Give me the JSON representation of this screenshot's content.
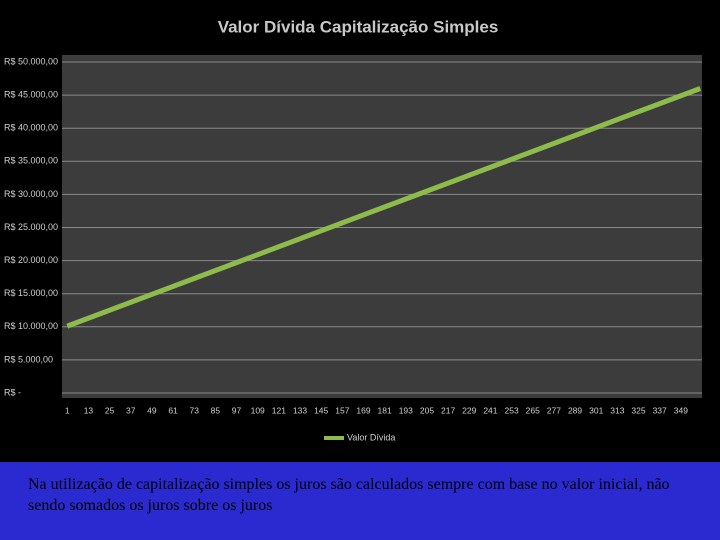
{
  "chart_data": {
    "type": "line",
    "title": "Valor Dívida Capitalização Simples",
    "x": [
      1,
      360
    ],
    "series": [
      {
        "name": "Valor Dívida",
        "color": "#8dbb4c",
        "values": [
          10100,
          46000
        ]
      }
    ],
    "xlim": [
      -2,
      361
    ],
    "xticks": [
      1,
      13,
      25,
      37,
      49,
      61,
      73,
      85,
      97,
      109,
      121,
      133,
      145,
      157,
      169,
      181,
      193,
      205,
      217,
      229,
      241,
      253,
      265,
      277,
      289,
      301,
      313,
      325,
      337,
      349
    ],
    "ylim": [
      0,
      50000
    ],
    "yticks": [
      {
        "value": 0,
        "label": "R$ -"
      },
      {
        "value": 5000,
        "label": "R$ 5.000,00"
      },
      {
        "value": 10000,
        "label": "R$ 10.000,00"
      },
      {
        "value": 15000,
        "label": "R$ 15.000,00"
      },
      {
        "value": 20000,
        "label": "R$ 20.000,00"
      },
      {
        "value": 25000,
        "label": "R$ 25.000,00"
      },
      {
        "value": 30000,
        "label": "R$ 30.000,00"
      },
      {
        "value": 35000,
        "label": "R$ 35.000,00"
      },
      {
        "value": 40000,
        "label": "R$ 40.000,00"
      },
      {
        "value": 45000,
        "label": "R$ 45.000,00"
      },
      {
        "value": 50000,
        "label": "R$ 50.000,00"
      }
    ],
    "grid": true,
    "legend": "bottom"
  },
  "caption": "Na utilização de capitalização simples os juros são calculados sempre com base no valor inicial, não sendo somados os juros sobre os juros"
}
